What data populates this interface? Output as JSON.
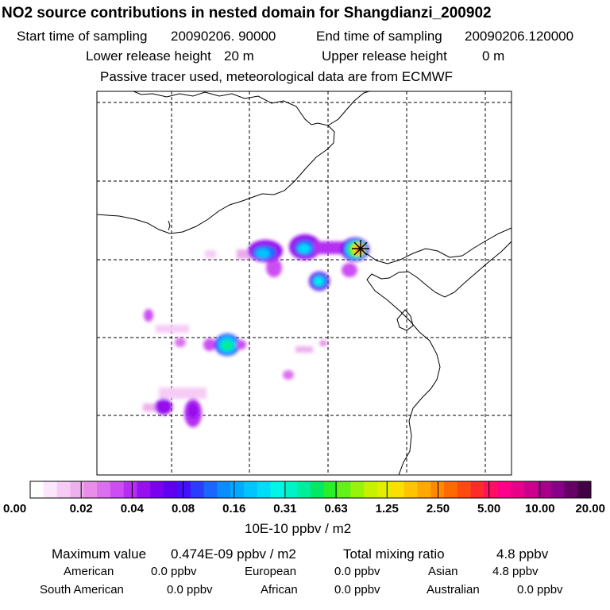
{
  "chart_data": {
    "type": "heatmap",
    "title": "NO2 source contributions in nested domain for Shangdianzi_200902",
    "subtitle_lines": [
      {
        "label_start": "Start time of sampling",
        "start_value": "20090206. 90000",
        "label_end": "End time of sampling",
        "end_value": "20090206.120000"
      },
      {
        "label_lower": "Lower release height",
        "lower_value": "20 m",
        "label_upper": "Upper release height",
        "upper_value": "0 m"
      }
    ],
    "note": "Passive tracer used, meteorological data are from ECMWF",
    "receptor_marker": "*",
    "colorbar": {
      "unit_label": "10E-10 ppbv / m2",
      "tick_labels": [
        "0.00",
        "0.02",
        "0.04",
        "0.08",
        "0.16",
        "0.31",
        "0.63",
        "1.25",
        "2.50",
        "5.00",
        "10.00",
        "20.00"
      ],
      "colors": [
        "#ffffff",
        "#fbe6fb",
        "#f6ccf6",
        "#efb0ef",
        "#e88ee8",
        "#db6fef",
        "#cc4ef2",
        "#b52ef2",
        "#9711ef",
        "#7a00ef",
        "#5f00f0",
        "#4410ff",
        "#2a3cff",
        "#1a66ff",
        "#0b8cff",
        "#00aaff",
        "#00c5ff",
        "#00ddf8",
        "#00f5e8",
        "#00f3c8",
        "#00ee9a",
        "#00e864",
        "#2aee2a",
        "#62f21a",
        "#96f408",
        "#c6f200",
        "#e4ee00",
        "#fae000",
        "#ffc400",
        "#ffa800",
        "#ff8a00",
        "#ff6a00",
        "#ff4a10",
        "#ff2a2a",
        "#ff1060",
        "#ff008a",
        "#e8008a",
        "#cc008c",
        "#a8008a",
        "#880088",
        "#660066",
        "#440044"
      ]
    },
    "summary": {
      "max_label": "Maximum value",
      "max_value": "0.474E-09 ppbv / m2",
      "total_label": "Total mixing ratio",
      "total_value": "4.8 ppbv"
    },
    "contributions": [
      {
        "region": "American",
        "value": "0.0 ppbv"
      },
      {
        "region": "European",
        "value": "0.0 ppbv"
      },
      {
        "region": "Asian",
        "value": "4.8 ppbv"
      },
      {
        "region": "South American",
        "value": "0.0 ppbv"
      },
      {
        "region": "African",
        "value": "0.0 ppbv"
      },
      {
        "region": "Australian",
        "value": "0.0 ppbv"
      }
    ]
  }
}
